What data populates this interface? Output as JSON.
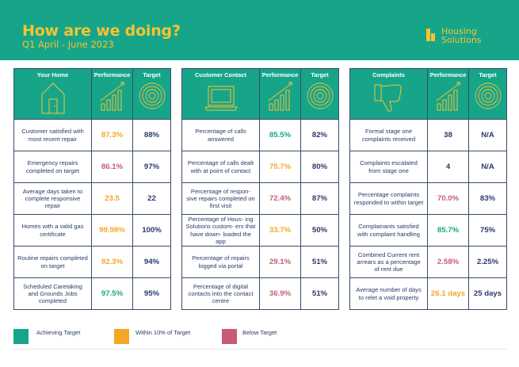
{
  "header": {
    "title": "How are we doing?",
    "subtitle": "Q1 April - June 2023",
    "logo_line1": "Housing",
    "logo_line2": "Solutions"
  },
  "panels": [
    {
      "heading": "Your Home",
      "perf_heading": "Performance",
      "target_heading": "Target",
      "rows": [
        {
          "label": "Customer satisfied with most recent repair",
          "performance": "87.3%",
          "target": "88%",
          "status": "orange"
        },
        {
          "label": "Emergency repairs completed on target",
          "performance": "86.1%",
          "target": "97%",
          "status": "pink"
        },
        {
          "label": "Average days taken to complete responsive repair",
          "performance": "23.5",
          "target": "22",
          "status": "orange"
        },
        {
          "label": "Homes with a valid gas certificate",
          "performance": "99.98%",
          "target": "100%",
          "status": "orange"
        },
        {
          "label": "Routine repairs completed on target",
          "performance": "92.3%",
          "target": "94%",
          "status": "orange"
        },
        {
          "label": "Scheduled Caretaking and Grounds Jobs completed",
          "performance": "97.5%",
          "target": "95%",
          "status": "green"
        }
      ]
    },
    {
      "heading": "Customer Contact",
      "perf_heading": "Performance",
      "target_heading": "Target",
      "rows": [
        {
          "label": "Percentage of calls answered",
          "performance": "85.5%",
          "target": "82%",
          "status": "green"
        },
        {
          "label": "Percentage of calls dealt with at point of contact",
          "performance": "75.7%",
          "target": "80%",
          "status": "orange"
        },
        {
          "label": "Percentage of respon- sive repairs completed on first visit",
          "performance": "72.4%",
          "target": "87%",
          "status": "pink"
        },
        {
          "label": "Percentage of Hous- ing Solutions custom- ers that have down- loaded the app",
          "performance": "33.7%",
          "target": "50%",
          "status": "orange"
        },
        {
          "label": "Percentage of repairs logged via portal",
          "performance": "29.1%",
          "target": "51%",
          "status": "pink"
        },
        {
          "label": "Percentage of digital contacts into the contact centre",
          "performance": "36.9%",
          "target": "51%",
          "status": "pink"
        }
      ]
    },
    {
      "heading": "Complaints",
      "perf_heading": "Performance",
      "target_heading": "Target",
      "rows": [
        {
          "label": "Formal stage one complaints received",
          "performance": "38",
          "target": "N/A",
          "status": "navy"
        },
        {
          "label": "Complaints escalated from stage one",
          "performance": "4",
          "target": "N/A",
          "status": "navy"
        },
        {
          "label": "Percentage complaints responded to within target",
          "performance": "70.0%",
          "target": "83%",
          "status": "pink"
        },
        {
          "label": "Complainants satisfied with complaint handling",
          "performance": "85.7%",
          "target": "75%",
          "status": "green"
        },
        {
          "label": "Combined Current rent arrears as a percentage of rent due",
          "performance": "2.58%",
          "target": "2.25%",
          "status": "pink"
        },
        {
          "label": "Average number of days to relet a void property",
          "performance": "26.1 days",
          "target": "25 days",
          "status": "orange"
        }
      ]
    }
  ],
  "legend": [
    {
      "label": "Achieving Target",
      "color": "#17a58a"
    },
    {
      "label": "Within 10% of Target",
      "color": "#f5a623"
    },
    {
      "label": "Below Target",
      "color": "#c85a78"
    }
  ],
  "colors": {
    "brand": "#17a58a",
    "accent": "#f4c430",
    "green": "#17a58a",
    "orange": "#f5a623",
    "pink": "#c85a78",
    "navy": "#2a3a6a"
  }
}
